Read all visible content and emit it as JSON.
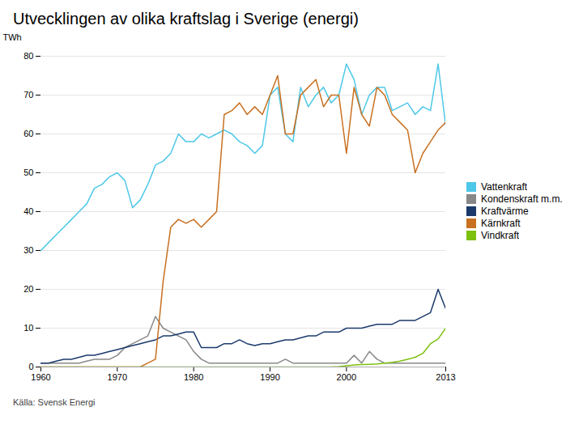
{
  "chart_data": {
    "type": "line",
    "title": "Utvecklingen av olika kraftslag i Sverige (energi)",
    "source": "Källa: Svensk Energi",
    "ylabel": "TWh",
    "x": [
      1960,
      1961,
      1962,
      1963,
      1964,
      1965,
      1966,
      1967,
      1968,
      1969,
      1970,
      1971,
      1972,
      1973,
      1974,
      1975,
      1976,
      1977,
      1978,
      1979,
      1980,
      1981,
      1982,
      1983,
      1984,
      1985,
      1986,
      1987,
      1988,
      1989,
      1990,
      1991,
      1992,
      1993,
      1994,
      1995,
      1996,
      1997,
      1998,
      1999,
      2000,
      2001,
      2002,
      2003,
      2004,
      2005,
      2006,
      2007,
      2008,
      2009,
      2010,
      2011,
      2012,
      2013
    ],
    "series": [
      {
        "name": "Vattenkraft",
        "color": "#4DC8E8",
        "values": [
          30,
          32,
          34,
          36,
          38,
          40,
          42,
          46,
          47,
          49,
          50,
          48,
          41,
          43,
          47,
          52,
          53,
          55,
          60,
          58,
          58,
          60,
          59,
          60,
          61,
          60,
          58,
          57,
          55,
          57,
          70,
          72,
          60,
          58,
          72,
          67,
          70,
          72,
          68,
          70,
          78,
          74,
          65,
          70,
          72,
          72,
          66,
          67,
          68,
          65,
          67,
          66,
          78,
          62
        ]
      },
      {
        "name": "Kondenskraft m.m.",
        "color": "#888888",
        "values": [
          1,
          1,
          1,
          1,
          1,
          1,
          1.5,
          2,
          2,
          2,
          3,
          5,
          6,
          7,
          8,
          13,
          10,
          9,
          8,
          7,
          4,
          2,
          1,
          1,
          1,
          1,
          1,
          1,
          1,
          1,
          1,
          1,
          2,
          1,
          1,
          1,
          1,
          1,
          1,
          1,
          1,
          3,
          1,
          4,
          2,
          1,
          1,
          1,
          1,
          1,
          1,
          1,
          1,
          1
        ]
      },
      {
        "name": "Kraftvärme",
        "color": "#1A3A6B",
        "values": [
          1,
          1,
          1.5,
          2,
          2,
          2.5,
          3,
          3,
          3.5,
          4,
          4.5,
          5,
          5.5,
          6,
          6.5,
          7,
          8,
          8,
          8.5,
          9,
          9,
          5,
          5,
          5,
          6,
          6,
          7,
          6,
          5.5,
          6,
          6,
          6.5,
          7,
          7,
          7.5,
          8,
          8,
          9,
          9,
          9,
          10,
          10,
          10,
          10.5,
          11,
          11,
          11,
          12,
          12,
          12,
          13,
          14,
          20,
          15
        ]
      },
      {
        "name": "Kärnkraft",
        "color": "#C87020",
        "values": [
          0,
          0,
          0,
          0,
          0,
          0,
          0,
          0,
          0,
          0,
          0,
          0,
          0,
          0,
          1,
          2,
          22,
          36,
          38,
          37,
          38,
          36,
          38,
          40,
          65,
          66,
          68,
          65,
          67,
          65,
          70,
          75,
          60,
          60,
          70,
          72,
          74,
          67,
          70,
          70,
          55,
          72,
          65,
          62,
          72,
          70,
          65,
          63,
          61,
          50,
          55,
          58,
          61,
          63
        ]
      },
      {
        "name": "Vindkraft",
        "color": "#7DC010",
        "values": [
          0,
          0,
          0,
          0,
          0,
          0,
          0,
          0,
          0,
          0,
          0,
          0,
          0,
          0,
          0,
          0,
          0,
          0,
          0,
          0,
          0,
          0,
          0,
          0,
          0,
          0,
          0,
          0,
          0,
          0,
          0,
          0,
          0,
          0,
          0,
          0,
          0,
          0,
          0,
          0.1,
          0.3,
          0.5,
          0.6,
          0.7,
          0.8,
          1,
          1.2,
          1.5,
          2,
          2.5,
          3.5,
          6,
          7.2,
          10
        ]
      }
    ],
    "xlim": [
      1960,
      2013
    ],
    "ylim": [
      0,
      80
    ],
    "xticks": [
      1960,
      1970,
      1980,
      1990,
      2000,
      2013
    ],
    "yticks": [
      0,
      10,
      20,
      30,
      40,
      50,
      60,
      70,
      80
    ],
    "grid": "y",
    "legend": "right"
  }
}
